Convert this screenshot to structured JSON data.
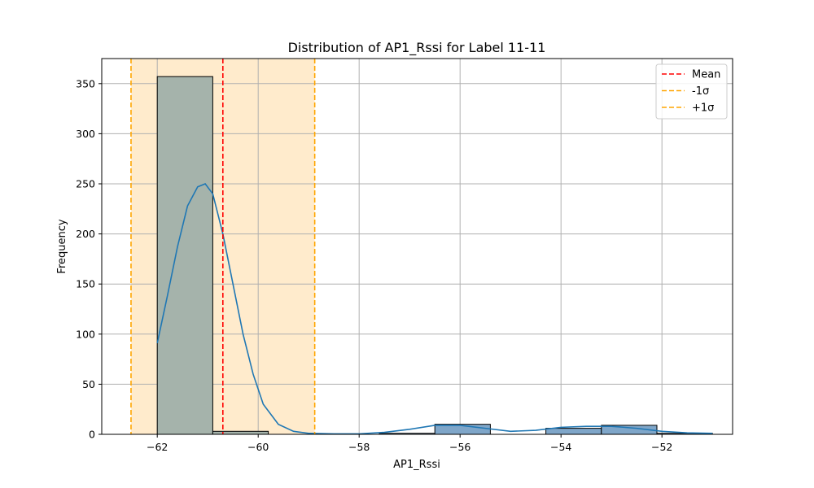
{
  "chart_data": {
    "type": "bar",
    "title": "Distribution of AP1_Rssi for Label 11-11",
    "xlabel": "AP1_Rssi",
    "ylabel": "Frequency",
    "xlim": [
      -63.1,
      -50.6
    ],
    "ylim": [
      0,
      375
    ],
    "xticks": [
      -62,
      -60,
      -58,
      -56,
      -54,
      -52
    ],
    "yticks": [
      0,
      50,
      100,
      150,
      200,
      250,
      300,
      350
    ],
    "grid": true,
    "legend_position": "upper right",
    "bins": [
      {
        "x0": -62.0,
        "x1": -60.9,
        "count": 357
      },
      {
        "x0": -60.9,
        "x1": -59.8,
        "count": 3
      },
      {
        "x0": -59.8,
        "x1": -58.7,
        "count": 0
      },
      {
        "x0": -58.7,
        "x1": -57.6,
        "count": 0
      },
      {
        "x0": -57.6,
        "x1": -56.5,
        "count": 1
      },
      {
        "x0": -56.5,
        "x1": -55.4,
        "count": 10
      },
      {
        "x0": -55.4,
        "x1": -54.3,
        "count": 0
      },
      {
        "x0": -54.3,
        "x1": -53.2,
        "count": 6
      },
      {
        "x0": -53.2,
        "x1": -52.1,
        "count": 9
      },
      {
        "x0": -52.1,
        "x1": -51.0,
        "count": 1
      }
    ],
    "kde": {
      "x": [
        -62.0,
        -61.8,
        -61.6,
        -61.4,
        -61.2,
        -61.05,
        -60.9,
        -60.7,
        -60.5,
        -60.3,
        -60.1,
        -59.9,
        -59.6,
        -59.3,
        -59.0,
        -58.5,
        -58.0,
        -57.5,
        -57.0,
        -56.5,
        -56.0,
        -55.5,
        -55.0,
        -54.5,
        -54.0,
        -53.5,
        -53.0,
        -52.5,
        -52.0,
        -51.5,
        -51.0
      ],
      "y": [
        91,
        138,
        187,
        228,
        247,
        250,
        240,
        200,
        150,
        100,
        60,
        30,
        10,
        3,
        1,
        0.5,
        0.5,
        2,
        5,
        9,
        9,
        6,
        3,
        4,
        7,
        8,
        8,
        6,
        3,
        1.5,
        1
      ]
    },
    "mean": -60.7,
    "minus_sigma": -62.52,
    "plus_sigma": -58.88,
    "legend": [
      {
        "label": "Mean",
        "color": "#ff0000"
      },
      {
        "label": "-1σ",
        "color": "#ffa500"
      },
      {
        "label": "+1σ",
        "color": "#ffa500"
      }
    ],
    "colors": {
      "band": "#ffebcc",
      "bar_overlap": "#a5b3ab",
      "bar": "#7fa6c9",
      "kde": "#1f77b4",
      "grid": "#b0b0b0"
    }
  }
}
